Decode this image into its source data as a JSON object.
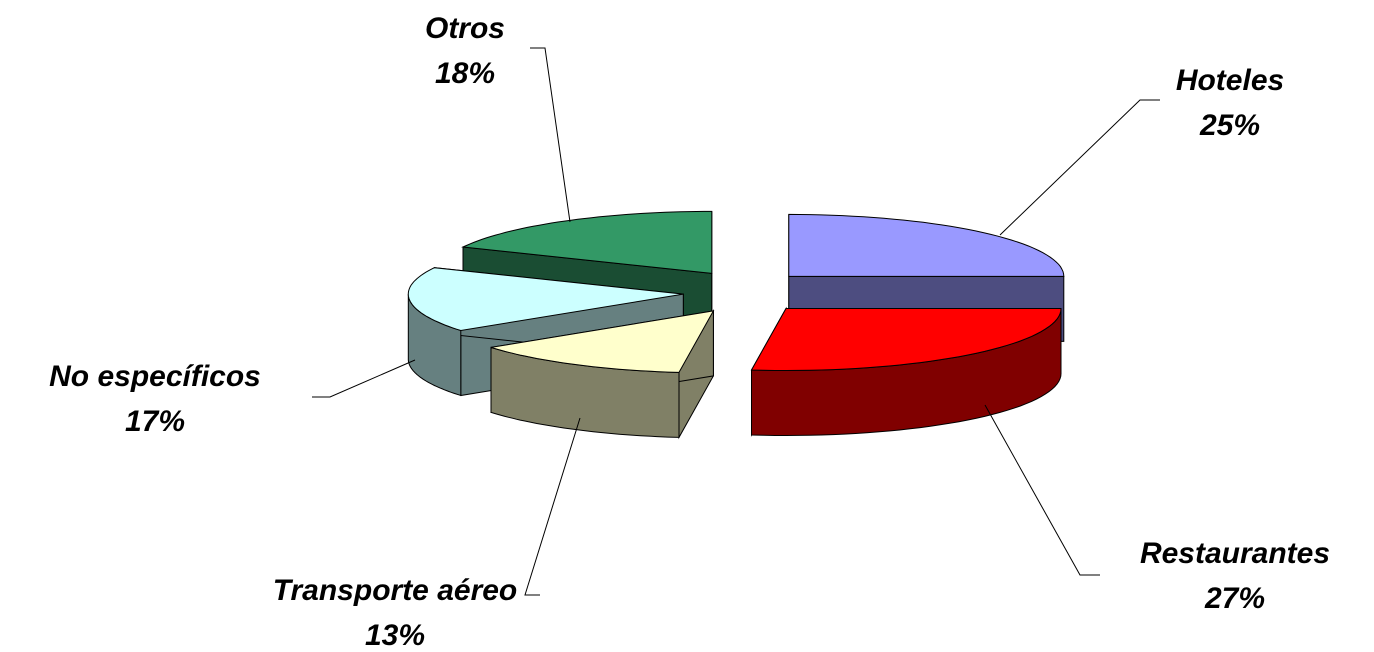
{
  "chart_data": {
    "type": "pie3d",
    "categories": [
      "Hoteles",
      "Restaurantes",
      "Transporte aéreo",
      "No específicos",
      "Otros"
    ],
    "values": [
      25,
      27,
      13,
      17,
      18
    ],
    "value_labels": [
      "25%",
      "27%",
      "13%",
      "17%",
      "18%"
    ],
    "colors": [
      "#9999ff",
      "#ff0000",
      "#ffffcc",
      "#ccffff",
      "#339966"
    ],
    "side_colors": [
      "#4d4d80",
      "#800000",
      "#808066",
      "#668080",
      "#1a4d33"
    ]
  }
}
